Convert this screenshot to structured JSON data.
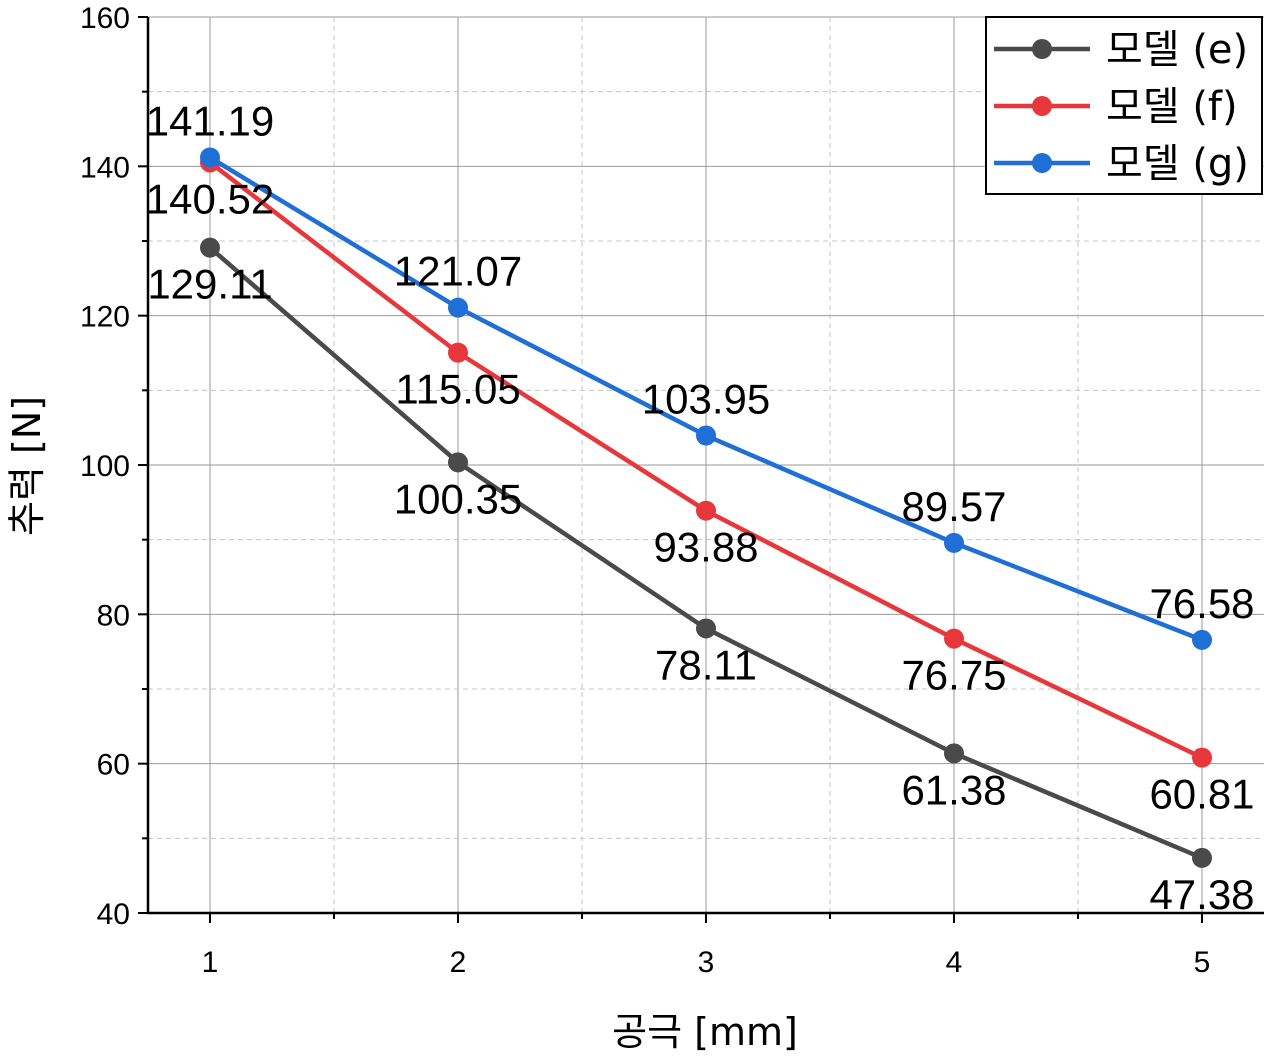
{
  "chart_data": {
    "type": "line",
    "xlabel": "공극 [mm]",
    "ylabel": "추력 [N]",
    "x": [
      1,
      2,
      3,
      4,
      5
    ],
    "xticks": [
      "1",
      "2",
      "3",
      "4",
      "5"
    ],
    "xlim": [
      0.75,
      5.25
    ],
    "ylim": [
      40,
      160
    ],
    "yticks": [
      "40",
      "60",
      "80",
      "100",
      "120",
      "140",
      "160"
    ],
    "grid": true,
    "legend_position": "top-right",
    "series": [
      {
        "name": "모델 (e)",
        "color": "#4a4a4a",
        "values": [
          129.11,
          100.35,
          78.11,
          61.38,
          47.38
        ],
        "labels": [
          "129.11",
          "100.35",
          "78.11",
          "61.38",
          "47.38"
        ],
        "label_position": "below"
      },
      {
        "name": "모델 (f)",
        "color": "#e8373a",
        "values": [
          140.52,
          115.05,
          93.88,
          76.75,
          60.81
        ],
        "labels": [
          "140.52",
          "115.05",
          "93.88",
          "76.75",
          "60.81"
        ],
        "label_position": "below"
      },
      {
        "name": "모델 (g)",
        "color": "#1f6fd6",
        "values": [
          141.19,
          121.07,
          103.95,
          89.57,
          76.58
        ],
        "labels": [
          "141.19",
          "121.07",
          "103.95",
          "89.57",
          "76.58"
        ],
        "label_position": "above"
      }
    ]
  }
}
